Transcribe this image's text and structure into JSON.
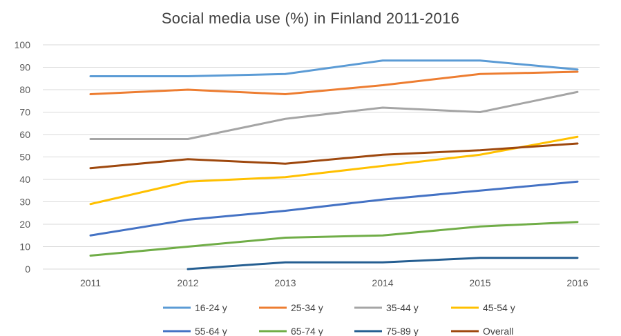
{
  "chart_data": {
    "type": "line",
    "title": "Social media use (%) in Finland 2011-2016",
    "categories": [
      "2011",
      "2012",
      "2013",
      "2014",
      "2015",
      "2016"
    ],
    "y_ticks": [
      0,
      10,
      20,
      30,
      40,
      50,
      60,
      70,
      80,
      90,
      100
    ],
    "ylim": [
      0,
      100
    ],
    "grid": true,
    "legend_position": "bottom",
    "series": [
      {
        "name": "16-24 y",
        "color": "#5b9bd5",
        "values": [
          86,
          86,
          87,
          93,
          93,
          89
        ]
      },
      {
        "name": "25-34 y",
        "color": "#ed7d31",
        "values": [
          78,
          80,
          78,
          82,
          87,
          88
        ]
      },
      {
        "name": "35-44 y",
        "color": "#a5a5a5",
        "values": [
          58,
          58,
          67,
          72,
          70,
          79
        ]
      },
      {
        "name": "45-54 y",
        "color": "#ffc000",
        "values": [
          29,
          39,
          41,
          46,
          51,
          59
        ]
      },
      {
        "name": "55-64 y",
        "color": "#4472c4",
        "values": [
          15,
          22,
          26,
          31,
          35,
          39
        ]
      },
      {
        "name": "65-74 y",
        "color": "#70ad47",
        "values": [
          6,
          10,
          14,
          15,
          19,
          21
        ]
      },
      {
        "name": "75-89 y",
        "color": "#255e91",
        "values": [
          null,
          0,
          3,
          3,
          5,
          5
        ]
      },
      {
        "name": "Overall",
        "color": "#9e480e",
        "values": [
          45,
          49,
          47,
          51,
          53,
          56
        ]
      }
    ]
  }
}
